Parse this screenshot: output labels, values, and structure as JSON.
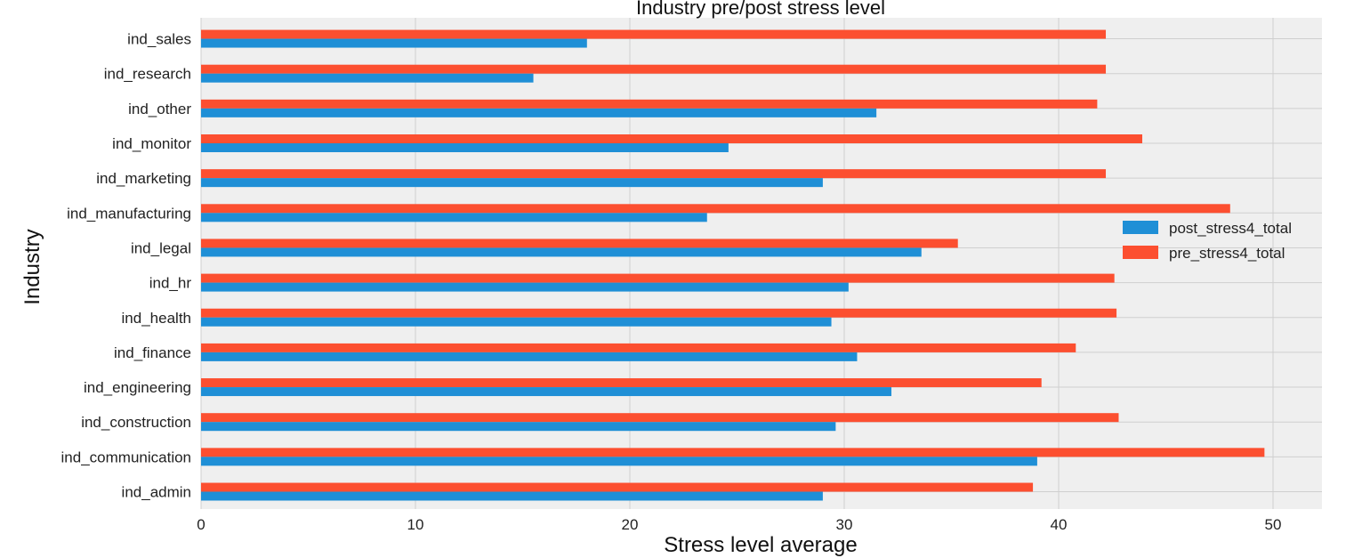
{
  "chart_data": {
    "type": "bar",
    "orientation": "horizontal",
    "title": "Industry pre/post stress level",
    "xlabel": "Stress level average",
    "ylabel": "Industry",
    "xlim": [
      0,
      52
    ],
    "xticks": [
      0,
      10,
      20,
      30,
      40,
      50
    ],
    "grid": true,
    "legend_position": "right",
    "categories": [
      "ind_admin",
      "ind_communication",
      "ind_construction",
      "ind_engineering",
      "ind_finance",
      "ind_health",
      "ind_hr",
      "ind_legal",
      "ind_manufacturing",
      "ind_marketing",
      "ind_monitor",
      "ind_other",
      "ind_research",
      "ind_sales"
    ],
    "series": [
      {
        "name": "post_stress4_total",
        "color": "#1f8fd6",
        "values": [
          29.0,
          39.0,
          29.6,
          32.2,
          30.6,
          29.4,
          30.2,
          33.6,
          23.6,
          29.0,
          24.6,
          31.5,
          15.5,
          18.0
        ]
      },
      {
        "name": "pre_stress4_total",
        "color": "#fc4f30",
        "values": [
          38.8,
          49.6,
          42.8,
          39.2,
          40.8,
          42.7,
          42.6,
          35.3,
          48.0,
          42.2,
          43.9,
          41.8,
          42.2,
          42.2
        ]
      }
    ]
  }
}
